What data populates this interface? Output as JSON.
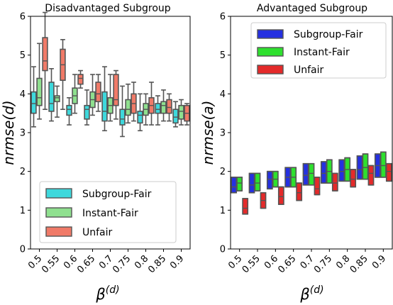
{
  "chart_data": [
    {
      "type": "box",
      "title": "Disadvantaged Subgroup",
      "xlabel_base": "β",
      "xlabel_sup": "(d)",
      "ylabel": "nrmse(d)",
      "ylim": [
        0,
        6
      ],
      "yticks": [
        "0",
        "1",
        "2",
        "3",
        "4",
        "5",
        "6"
      ],
      "categories": [
        "0.5",
        "0.55",
        "0.6",
        "0.65",
        "0.7",
        "0.75",
        "0.8",
        "0.85",
        "0.9"
      ],
      "legend_position": "lower-center",
      "series": [
        {
          "name": "Subgroup-Fair",
          "color": "#3ed8dc",
          "boxes": [
            {
              "wl": 3.15,
              "q1": 3.5,
              "med": 3.75,
              "q3": 4.05,
              "wh": 4.7
            },
            {
              "wl": 3.3,
              "q1": 3.55,
              "med": 3.75,
              "q3": 4.3,
              "wh": 4.65
            },
            {
              "wl": 3.2,
              "q1": 3.45,
              "med": 3.6,
              "q3": 3.7,
              "wh": 3.9
            },
            {
              "wl": 3.2,
              "q1": 3.35,
              "med": 3.6,
              "q3": 3.7,
              "wh": 4.1
            },
            {
              "wl": 3.05,
              "q1": 3.3,
              "med": 3.55,
              "q3": 4.05,
              "wh": 4.7
            },
            {
              "wl": 2.9,
              "q1": 3.2,
              "med": 3.35,
              "q3": 3.6,
              "wh": 4.2
            },
            {
              "wl": 3.05,
              "q1": 3.25,
              "med": 3.45,
              "q3": 3.55,
              "wh": 4.0
            },
            {
              "wl": 3.2,
              "q1": 3.5,
              "med": 3.6,
              "q3": 3.75,
              "wh": 3.95
            },
            {
              "wl": 3.15,
              "q1": 3.25,
              "med": 3.4,
              "q3": 3.6,
              "wh": 3.8
            }
          ]
        },
        {
          "name": "Instant-Fair",
          "color": "#8fe08f",
          "boxes": [
            {
              "wl": 3.35,
              "q1": 3.7,
              "med": 3.9,
              "q3": 4.4,
              "wh": 5.3
            },
            {
              "wl": 3.4,
              "q1": 3.8,
              "med": 3.9,
              "q3": 3.95,
              "wh": 4.2
            },
            {
              "wl": 3.5,
              "q1": 3.75,
              "med": 3.95,
              "q3": 4.15,
              "wh": 4.5
            },
            {
              "wl": 3.45,
              "q1": 3.65,
              "med": 3.85,
              "q3": 4.05,
              "wh": 4.5
            },
            {
              "wl": 3.3,
              "q1": 3.5,
              "med": 3.7,
              "q3": 3.9,
              "wh": 4.5
            },
            {
              "wl": 3.25,
              "q1": 3.45,
              "med": 3.6,
              "q3": 3.85,
              "wh": 4.25
            },
            {
              "wl": 3.2,
              "q1": 3.45,
              "med": 3.6,
              "q3": 3.75,
              "wh": 4.0
            },
            {
              "wl": 3.3,
              "q1": 3.5,
              "med": 3.7,
              "q3": 3.8,
              "wh": 4.1
            },
            {
              "wl": 3.2,
              "q1": 3.35,
              "med": 3.55,
              "q3": 3.7,
              "wh": 3.85
            }
          ]
        },
        {
          "name": "Unfair",
          "color": "#f07a68",
          "boxes": [
            {
              "wl": 3.6,
              "q1": 4.6,
              "med": 4.85,
              "q3": 5.45,
              "wh": 6.1
            },
            {
              "wl": 3.6,
              "q1": 4.35,
              "med": 4.75,
              "q3": 5.15,
              "wh": 5.4
            },
            {
              "wl": 4.15,
              "q1": 4.25,
              "med": 4.4,
              "q3": 4.5,
              "wh": 4.6
            },
            {
              "wl": 3.55,
              "q1": 3.8,
              "med": 4.0,
              "q3": 4.3,
              "wh": 4.5
            },
            {
              "wl": 3.35,
              "q1": 3.7,
              "med": 3.85,
              "q3": 4.5,
              "wh": 4.6
            },
            {
              "wl": 3.3,
              "q1": 3.5,
              "med": 3.75,
              "q3": 4.0,
              "wh": 4.3
            },
            {
              "wl": 3.2,
              "q1": 3.5,
              "med": 3.7,
              "q3": 3.9,
              "wh": 4.3
            },
            {
              "wl": 3.3,
              "q1": 3.5,
              "med": 3.65,
              "q3": 3.85,
              "wh": 4.0
            },
            {
              "wl": 3.2,
              "q1": 3.3,
              "med": 3.5,
              "q3": 3.7,
              "wh": 3.75
            }
          ]
        }
      ]
    },
    {
      "type": "box",
      "title": "Advantaged Subgroup",
      "xlabel_base": "β",
      "xlabel_sup": "(d)",
      "ylabel": "nrmse(a)",
      "ylim": [
        0,
        6
      ],
      "yticks": [
        "0",
        "1",
        "2",
        "3",
        "4",
        "5",
        "6"
      ],
      "categories": [
        "0.5",
        "0.55",
        "0.6",
        "0.65",
        "0.7",
        "0.75",
        "0.8",
        "0.85",
        "0.9"
      ],
      "legend_position": "upper-right",
      "series": [
        {
          "name": "Subgroup-Fair",
          "color": "#2530e0",
          "boxes": [
            {
              "wl": 1.45,
              "q1": 1.45,
              "med": 1.6,
              "q3": 1.85,
              "wh": 1.85
            },
            {
              "wl": 1.45,
              "q1": 1.45,
              "med": 1.65,
              "q3": 1.95,
              "wh": 1.95
            },
            {
              "wl": 1.55,
              "q1": 1.55,
              "med": 1.8,
              "q3": 2.0,
              "wh": 2.0
            },
            {
              "wl": 1.6,
              "q1": 1.6,
              "med": 1.85,
              "q3": 2.1,
              "wh": 2.1
            },
            {
              "wl": 1.65,
              "q1": 1.65,
              "med": 1.9,
              "q3": 2.2,
              "wh": 2.2
            },
            {
              "wl": 1.7,
              "q1": 1.7,
              "med": 1.95,
              "q3": 2.25,
              "wh": 2.25
            },
            {
              "wl": 1.75,
              "q1": 1.75,
              "med": 2.0,
              "q3": 2.3,
              "wh": 2.3
            },
            {
              "wl": 1.8,
              "q1": 1.8,
              "med": 2.05,
              "q3": 2.4,
              "wh": 2.4
            },
            {
              "wl": 1.85,
              "q1": 1.85,
              "med": 2.15,
              "q3": 2.45,
              "wh": 2.45
            }
          ]
        },
        {
          "name": "Instant-Fair",
          "color": "#2ee02e",
          "boxes": [
            {
              "wl": 1.5,
              "q1": 1.5,
              "med": 1.7,
              "q3": 1.85,
              "wh": 1.85
            },
            {
              "wl": 1.5,
              "q1": 1.5,
              "med": 1.7,
              "q3": 1.95,
              "wh": 1.95
            },
            {
              "wl": 1.6,
              "q1": 1.6,
              "med": 1.8,
              "q3": 2.0,
              "wh": 2.0
            },
            {
              "wl": 1.6,
              "q1": 1.6,
              "med": 1.85,
              "q3": 2.1,
              "wh": 2.1
            },
            {
              "wl": 1.65,
              "q1": 1.65,
              "med": 1.95,
              "q3": 2.2,
              "wh": 2.2
            },
            {
              "wl": 1.7,
              "q1": 1.7,
              "med": 2.0,
              "q3": 2.3,
              "wh": 2.3
            },
            {
              "wl": 1.75,
              "q1": 1.75,
              "med": 2.05,
              "q3": 2.35,
              "wh": 2.35
            },
            {
              "wl": 1.8,
              "q1": 1.8,
              "med": 2.1,
              "q3": 2.45,
              "wh": 2.45
            },
            {
              "wl": 1.85,
              "q1": 1.85,
              "med": 2.15,
              "q3": 2.5,
              "wh": 2.5
            }
          ]
        },
        {
          "name": "Unfair",
          "color": "#e42a2a",
          "boxes": [
            {
              "wl": 0.9,
              "q1": 0.9,
              "med": 1.05,
              "q3": 1.3,
              "wh": 1.3
            },
            {
              "wl": 1.05,
              "q1": 1.05,
              "med": 1.25,
              "q3": 1.45,
              "wh": 1.45
            },
            {
              "wl": 1.15,
              "q1": 1.15,
              "med": 1.35,
              "q3": 1.6,
              "wh": 1.6
            },
            {
              "wl": 1.25,
              "q1": 1.25,
              "med": 1.45,
              "q3": 1.7,
              "wh": 1.7
            },
            {
              "wl": 1.4,
              "q1": 1.4,
              "med": 1.55,
              "q3": 1.85,
              "wh": 1.85
            },
            {
              "wl": 1.5,
              "q1": 1.5,
              "med": 1.7,
              "q3": 1.95,
              "wh": 1.95
            },
            {
              "wl": 1.6,
              "q1": 1.6,
              "med": 1.8,
              "q3": 2.05,
              "wh": 2.05
            },
            {
              "wl": 1.65,
              "q1": 1.65,
              "med": 1.95,
              "q3": 2.15,
              "wh": 2.15
            },
            {
              "wl": 1.75,
              "q1": 1.75,
              "med": 2.0,
              "q3": 2.2,
              "wh": 2.2
            }
          ]
        }
      ]
    }
  ]
}
